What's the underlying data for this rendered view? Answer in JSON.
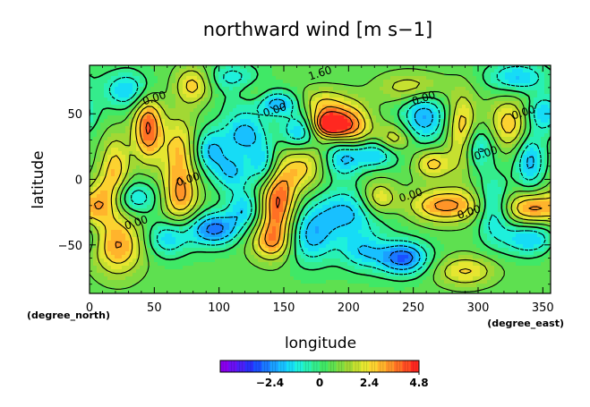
{
  "chart_data": {
    "type": "heatmap",
    "title": "northward wind [m s−1]",
    "xlabel": "longitude",
    "ylabel": "latitude",
    "x_unit_label": "(degree_east)",
    "y_unit_label": "(degree_north)",
    "xlim": [
      0,
      356
    ],
    "ylim": [
      -87,
      87
    ],
    "x_ticks": [
      0,
      50,
      100,
      150,
      200,
      250,
      300,
      350
    ],
    "x_tick_labels": [
      "0",
      "50",
      "100",
      "150",
      "200",
      "250",
      "300",
      "350"
    ],
    "y_ticks": [
      -50,
      0,
      50
    ],
    "y_tick_labels": [
      "−50",
      "0",
      "50"
    ],
    "contour_labels": [
      {
        "text": "1.60",
        "lon": 178,
        "lat": 81
      },
      {
        "text": "0.00",
        "lon": 50,
        "lat": 62
      },
      {
        "text": "0.00",
        "lon": 143,
        "lat": 53
      },
      {
        "text": "0.00",
        "lon": 258,
        "lat": 62
      },
      {
        "text": "0.00",
        "lon": 248,
        "lat": -12
      },
      {
        "text": "0.00",
        "lon": 76,
        "lat": 0
      },
      {
        "text": "0.00",
        "lon": 36,
        "lat": -33
      },
      {
        "text": "0.00",
        "lon": 306,
        "lat": 20
      },
      {
        "text": "0.00",
        "lon": 293,
        "lat": -25
      },
      {
        "text": "0.00",
        "lon": 335,
        "lat": 51
      }
    ],
    "colorbar": {
      "min": -4.8,
      "max": 4.8,
      "step": 0.4,
      "ticks": [
        -2.4,
        0,
        2.4,
        4.8
      ],
      "tick_labels": [
        "−2.4",
        "0",
        "2.4",
        "4.8"
      ],
      "colors": [
        "#8a00ee",
        "#6a10f2",
        "#4a20f6",
        "#2a30fa",
        "#1a50ff",
        "#1a78ff",
        "#1aa0ff",
        "#18c0ff",
        "#16dcf6",
        "#1ef0dc",
        "#28f0b4",
        "#34ec8c",
        "#40e866",
        "#5ee050",
        "#80dc40",
        "#a2d834",
        "#c6e030",
        "#e6e630",
        "#fcd230",
        "#ffb42c",
        "#ff9428",
        "#ff7024",
        "#ff4c22",
        "#ff2820"
      ]
    },
    "features": [
      {
        "lon": 140,
        "lat": 58,
        "amp": -3.2,
        "sx": 18,
        "sy": 7
      },
      {
        "lon": 186,
        "lat": 42,
        "amp": 5.0,
        "sx": 10,
        "sy": 7
      },
      {
        "lon": 178,
        "lat": 58,
        "amp": 2.2,
        "sx": 16,
        "sy": 8
      },
      {
        "lon": 162,
        "lat": 36,
        "amp": -2.4,
        "sx": 10,
        "sy": 10
      },
      {
        "lon": 145,
        "lat": -18,
        "amp": 3.8,
        "sx": 10,
        "sy": 20
      },
      {
        "lon": 140,
        "lat": -48,
        "amp": 2.2,
        "sx": 12,
        "sy": 10
      },
      {
        "lon": 96,
        "lat": -38,
        "amp": -3.2,
        "sx": 14,
        "sy": 9
      },
      {
        "lon": 242,
        "lat": -60,
        "amp": -3.4,
        "sx": 14,
        "sy": 9
      },
      {
        "lon": 200,
        "lat": -25,
        "amp": -2.3,
        "sx": 22,
        "sy": 13
      },
      {
        "lon": 223,
        "lat": -15,
        "amp": 2.4,
        "sx": 10,
        "sy": 10
      },
      {
        "lon": 275,
        "lat": -20,
        "amp": 3.0,
        "sx": 20,
        "sy": 9
      },
      {
        "lon": 342,
        "lat": -22,
        "amp": 3.0,
        "sx": 16,
        "sy": 9
      },
      {
        "lon": 312,
        "lat": -22,
        "amp": -2.2,
        "sx": 9,
        "sy": 16
      },
      {
        "lon": 340,
        "lat": -45,
        "amp": -2.2,
        "sx": 16,
        "sy": 9
      },
      {
        "lon": 22,
        "lat": -50,
        "amp": 2.8,
        "sx": 14,
        "sy": 16
      },
      {
        "lon": 34,
        "lat": -14,
        "amp": -2.0,
        "sx": 14,
        "sy": 9
      },
      {
        "lon": 20,
        "lat": 8,
        "amp": 2.2,
        "sx": 8,
        "sy": 18
      },
      {
        "lon": 10,
        "lat": -15,
        "amp": 2.0,
        "sx": 9,
        "sy": 12
      },
      {
        "lon": 45,
        "lat": 40,
        "amp": 3.6,
        "sx": 8,
        "sy": 18
      },
      {
        "lon": 30,
        "lat": 68,
        "amp": -2.2,
        "sx": 14,
        "sy": 10
      },
      {
        "lon": 80,
        "lat": 72,
        "amp": 2.2,
        "sx": 10,
        "sy": 10
      },
      {
        "lon": 70,
        "lat": 20,
        "amp": 2.4,
        "sx": 10,
        "sy": 20
      },
      {
        "lon": 92,
        "lat": 22,
        "amp": -2.2,
        "sx": 10,
        "sy": 12
      },
      {
        "lon": 128,
        "lat": 60,
        "amp": 2.0,
        "sx": 10,
        "sy": 8
      },
      {
        "lon": 258,
        "lat": 48,
        "amp": -2.6,
        "sx": 12,
        "sy": 14
      },
      {
        "lon": 288,
        "lat": 35,
        "amp": 2.8,
        "sx": 8,
        "sy": 20
      },
      {
        "lon": 298,
        "lat": 25,
        "amp": -2.2,
        "sx": 10,
        "sy": 12
      },
      {
        "lon": 325,
        "lat": 42,
        "amp": 2.4,
        "sx": 12,
        "sy": 14
      },
      {
        "lon": 340,
        "lat": 15,
        "amp": -2.4,
        "sx": 8,
        "sy": 16
      },
      {
        "lon": 350,
        "lat": 50,
        "amp": -2.2,
        "sx": 10,
        "sy": 10
      },
      {
        "lon": 220,
        "lat": 20,
        "amp": -2.4,
        "sx": 14,
        "sy": 8
      },
      {
        "lon": 205,
        "lat": 40,
        "amp": 2.4,
        "sx": 10,
        "sy": 12
      },
      {
        "lon": 235,
        "lat": 30,
        "amp": 2.0,
        "sx": 10,
        "sy": 8
      },
      {
        "lon": 265,
        "lat": 12,
        "amp": 2.2,
        "sx": 10,
        "sy": 8
      },
      {
        "lon": 195,
        "lat": 15,
        "amp": -2.0,
        "sx": 10,
        "sy": 10
      },
      {
        "lon": 120,
        "lat": 35,
        "amp": -2.4,
        "sx": 12,
        "sy": 12
      },
      {
        "lon": 110,
        "lat": 5,
        "amp": -2.0,
        "sx": 10,
        "sy": 10
      },
      {
        "lon": 135,
        "lat": 10,
        "amp": -2.2,
        "sx": 8,
        "sy": 12
      },
      {
        "lon": 165,
        "lat": 10,
        "amp": 2.0,
        "sx": 12,
        "sy": 14
      },
      {
        "lon": 120,
        "lat": -22,
        "amp": -2.0,
        "sx": 10,
        "sy": 10
      },
      {
        "lon": 170,
        "lat": -45,
        "amp": -2.2,
        "sx": 14,
        "sy": 14
      },
      {
        "lon": 70,
        "lat": -15,
        "amp": 2.4,
        "sx": 10,
        "sy": 14
      },
      {
        "lon": 60,
        "lat": -45,
        "amp": -2.0,
        "sx": 12,
        "sy": 10
      },
      {
        "lon": 250,
        "lat": 70,
        "amp": 1.8,
        "sx": 18,
        "sy": 8
      },
      {
        "lon": 330,
        "lat": 78,
        "amp": -2.2,
        "sx": 16,
        "sy": 8
      },
      {
        "lon": 290,
        "lat": -70,
        "amp": 2.0,
        "sx": 16,
        "sy": 8
      },
      {
        "lon": 210,
        "lat": -55,
        "amp": -1.8,
        "sx": 12,
        "sy": 10
      },
      {
        "lon": 110,
        "lat": 78,
        "amp": -1.6,
        "sx": 14,
        "sy": 8
      }
    ]
  }
}
